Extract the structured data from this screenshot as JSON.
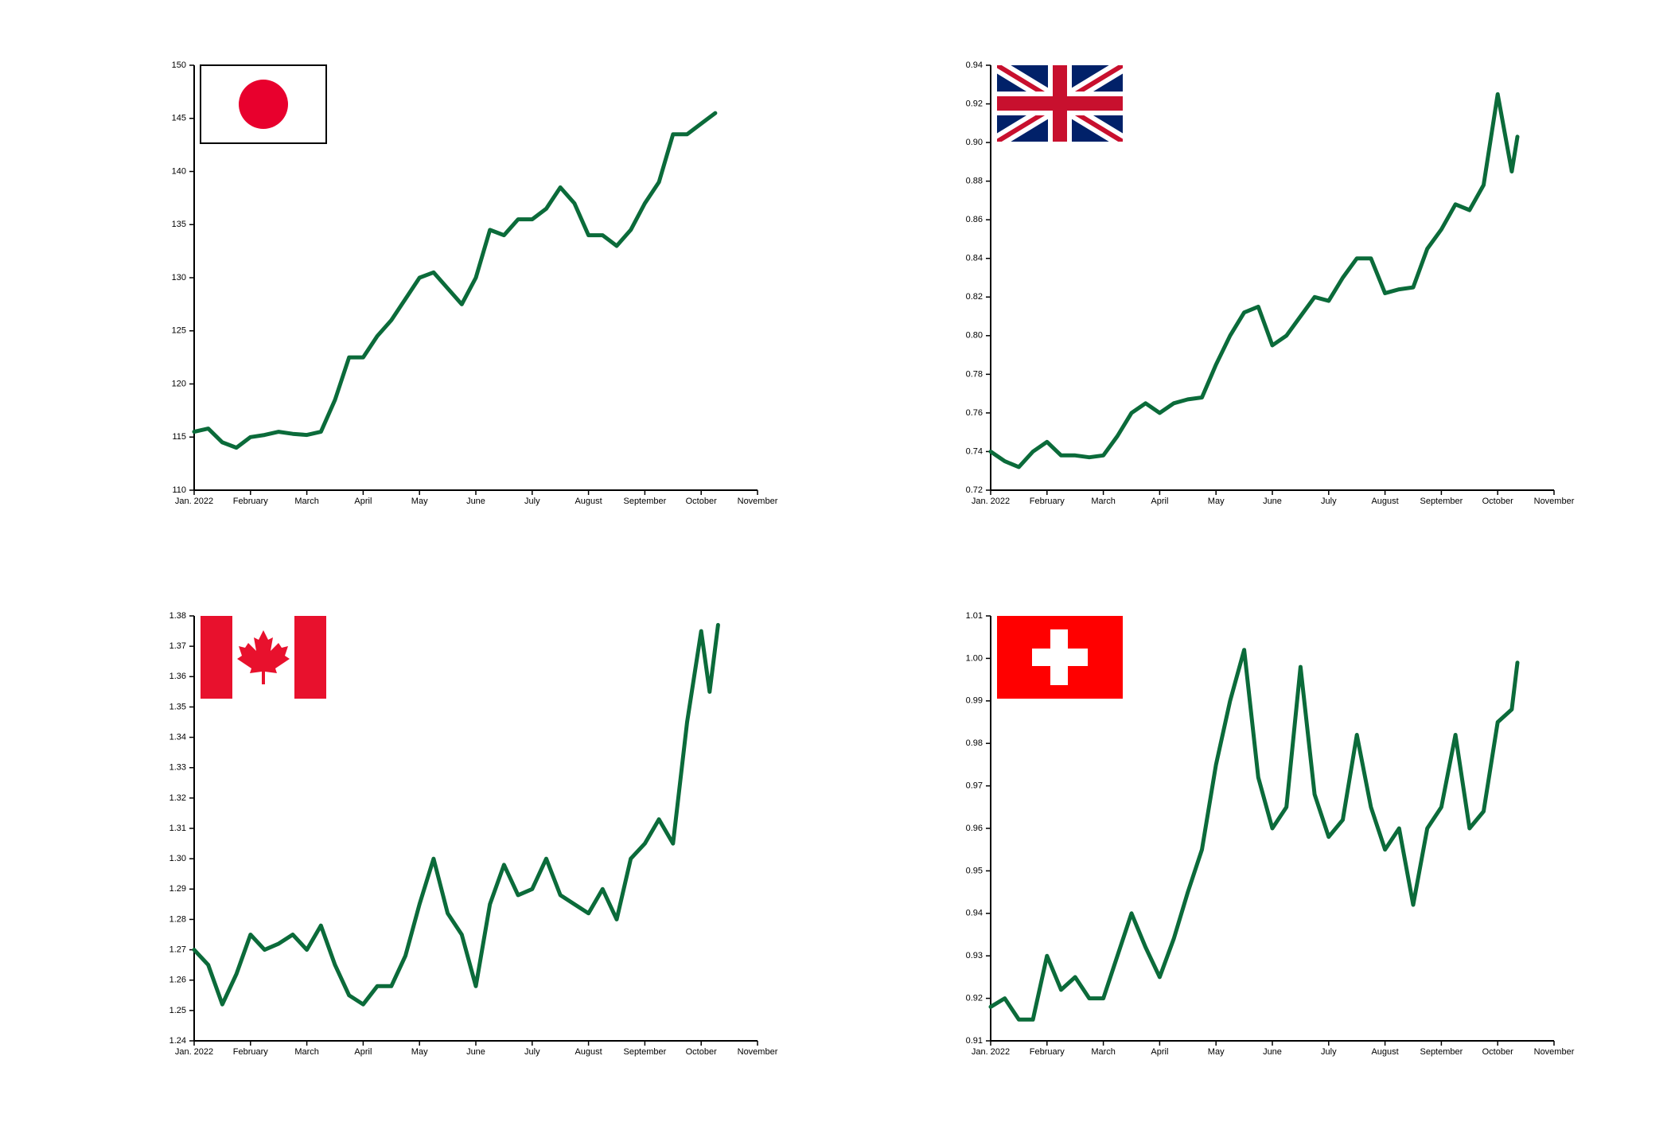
{
  "chart_data": [
    {
      "type": "line",
      "color": "#0b6b3a",
      "x": [
        0,
        0.25,
        0.5,
        0.75,
        1,
        1.25,
        1.5,
        1.75,
        2,
        2.25,
        2.5,
        2.75,
        3,
        3.25,
        3.5,
        3.75,
        4,
        4.25,
        4.5,
        4.75,
        5,
        5.25,
        5.5,
        5.75,
        6,
        6.25,
        6.5,
        6.75,
        7,
        7.25,
        7.5,
        7.75,
        8,
        8.25,
        8.5,
        8.75,
        9,
        9.25
      ],
      "values": [
        115.5,
        115.8,
        114.5,
        114,
        115,
        115.2,
        115.5,
        115.3,
        115.2,
        115.5,
        118.5,
        122.5,
        122.5,
        124.5,
        126,
        128,
        130,
        130.5,
        129,
        127.5,
        130,
        134.5,
        134,
        135.5,
        135.5,
        136.5,
        138.5,
        137,
        134,
        134,
        133,
        134.5,
        137,
        139,
        143.5,
        143.5,
        144.5,
        145.5
      ],
      "xlim": [
        0,
        10
      ],
      "xticks": [
        {
          "value": 0,
          "label": "Jan. 2022"
        },
        {
          "value": 1,
          "label": "February"
        },
        {
          "value": 2,
          "label": "March"
        },
        {
          "value": 3,
          "label": "April"
        },
        {
          "value": 4,
          "label": "May"
        },
        {
          "value": 5,
          "label": "June"
        },
        {
          "value": 6,
          "label": "July"
        },
        {
          "value": 7,
          "label": "August"
        },
        {
          "value": 8,
          "label": "September"
        },
        {
          "value": 9,
          "label": "October"
        },
        {
          "value": 10,
          "label": "November"
        }
      ],
      "ylim": [
        110,
        150
      ],
      "yticks": [
        110,
        115,
        120,
        125,
        130,
        135,
        140,
        145,
        150
      ]
    },
    {
      "type": "line",
      "color": "#0b6b3a",
      "x": [
        0,
        0.25,
        0.5,
        0.75,
        1,
        1.25,
        1.5,
        1.75,
        2,
        2.25,
        2.5,
        2.75,
        3,
        3.25,
        3.5,
        3.75,
        4,
        4.25,
        4.5,
        4.75,
        5,
        5.25,
        5.5,
        5.75,
        6,
        6.25,
        6.5,
        6.75,
        7,
        7.25,
        7.5,
        7.75,
        8,
        8.25,
        8.5,
        8.75,
        9,
        9.25,
        9.35
      ],
      "values": [
        0.74,
        0.735,
        0.732,
        0.74,
        0.745,
        0.738,
        0.738,
        0.737,
        0.738,
        0.748,
        0.76,
        0.765,
        0.76,
        0.765,
        0.767,
        0.768,
        0.785,
        0.8,
        0.812,
        0.815,
        0.795,
        0.8,
        0.81,
        0.82,
        0.818,
        0.83,
        0.84,
        0.84,
        0.822,
        0.824,
        0.825,
        0.845,
        0.855,
        0.868,
        0.865,
        0.878,
        0.925,
        0.885,
        0.903
      ],
      "xlim": [
        0,
        10
      ],
      "xticks": [
        {
          "value": 0,
          "label": "Jan. 2022"
        },
        {
          "value": 1,
          "label": "February"
        },
        {
          "value": 2,
          "label": "March"
        },
        {
          "value": 3,
          "label": "April"
        },
        {
          "value": 4,
          "label": "May"
        },
        {
          "value": 5,
          "label": "June"
        },
        {
          "value": 6,
          "label": "July"
        },
        {
          "value": 7,
          "label": "August"
        },
        {
          "value": 8,
          "label": "September"
        },
        {
          "value": 9,
          "label": "October"
        },
        {
          "value": 10,
          "label": "November"
        }
      ],
      "ylim": [
        0.72,
        0.94
      ],
      "yticks": [
        0.72,
        0.74,
        0.76,
        0.78,
        {
          "value": 0.8,
          "label": "0.80"
        },
        0.82,
        0.84,
        0.86,
        0.88,
        {
          "value": 0.9,
          "label": "0.90"
        },
        0.92,
        0.94
      ]
    },
    {
      "type": "line",
      "color": "#0b6b3a",
      "x": [
        0,
        0.25,
        0.5,
        0.75,
        1,
        1.25,
        1.5,
        1.75,
        2,
        2.25,
        2.5,
        2.75,
        3,
        3.25,
        3.5,
        3.75,
        4,
        4.25,
        4.5,
        4.75,
        5,
        5.25,
        5.5,
        5.75,
        6,
        6.25,
        6.5,
        6.75,
        7,
        7.25,
        7.5,
        7.75,
        8,
        8.25,
        8.5,
        8.75,
        9,
        9.15,
        9.3
      ],
      "values": [
        1.27,
        1.265,
        1.252,
        1.262,
        1.275,
        1.27,
        1.272,
        1.275,
        1.27,
        1.278,
        1.265,
        1.255,
        1.252,
        1.258,
        1.258,
        1.268,
        1.285,
        1.3,
        1.282,
        1.275,
        1.258,
        1.285,
        1.298,
        1.288,
        1.29,
        1.3,
        1.288,
        1.285,
        1.282,
        1.29,
        1.28,
        1.3,
        1.305,
        1.313,
        1.305,
        1.345,
        1.375,
        1.355,
        1.377
      ],
      "xlim": [
        0,
        10
      ],
      "xticks": [
        {
          "value": 0,
          "label": "Jan. 2022"
        },
        {
          "value": 1,
          "label": "February"
        },
        {
          "value": 2,
          "label": "March"
        },
        {
          "value": 3,
          "label": "April"
        },
        {
          "value": 4,
          "label": "May"
        },
        {
          "value": 5,
          "label": "June"
        },
        {
          "value": 6,
          "label": "July"
        },
        {
          "value": 7,
          "label": "August"
        },
        {
          "value": 8,
          "label": "September"
        },
        {
          "value": 9,
          "label": "October"
        },
        {
          "value": 10,
          "label": "November"
        }
      ],
      "ylim": [
        1.24,
        1.38
      ],
      "yticks": [
        1.24,
        1.25,
        1.26,
        1.27,
        1.28,
        1.29,
        {
          "value": 1.3,
          "label": "1.30"
        },
        1.31,
        1.32,
        1.33,
        1.34,
        1.35,
        1.36,
        1.37,
        1.38
      ]
    },
    {
      "type": "line",
      "color": "#0b6b3a",
      "x": [
        0,
        0.25,
        0.5,
        0.75,
        1,
        1.25,
        1.5,
        1.75,
        2,
        2.25,
        2.5,
        2.75,
        3,
        3.25,
        3.5,
        3.75,
        4,
        4.25,
        4.5,
        4.75,
        5,
        5.25,
        5.5,
        5.75,
        6,
        6.25,
        6.5,
        6.75,
        7,
        7.25,
        7.5,
        7.75,
        8,
        8.25,
        8.5,
        8.75,
        9,
        9.25,
        9.35
      ],
      "values": [
        0.918,
        0.92,
        0.915,
        0.915,
        0.93,
        0.922,
        0.925,
        0.92,
        0.92,
        0.93,
        0.94,
        0.932,
        0.925,
        0.934,
        0.945,
        0.955,
        0.975,
        0.99,
        1.002,
        0.972,
        0.96,
        0.965,
        0.998,
        0.968,
        0.958,
        0.962,
        0.982,
        0.965,
        0.955,
        0.96,
        0.942,
        0.96,
        0.965,
        0.982,
        0.96,
        0.964,
        0.985,
        0.988,
        0.999
      ],
      "xlim": [
        0,
        10
      ],
      "xticks": [
        {
          "value": 0,
          "label": "Jan. 2022"
        },
        {
          "value": 1,
          "label": "February"
        },
        {
          "value": 2,
          "label": "March"
        },
        {
          "value": 3,
          "label": "April"
        },
        {
          "value": 4,
          "label": "May"
        },
        {
          "value": 5,
          "label": "June"
        },
        {
          "value": 6,
          "label": "July"
        },
        {
          "value": 7,
          "label": "August"
        },
        {
          "value": 8,
          "label": "September"
        },
        {
          "value": 9,
          "label": "October"
        },
        {
          "value": 10,
          "label": "November"
        }
      ],
      "ylim": [
        0.91,
        1.01
      ],
      "yticks": [
        0.91,
        0.92,
        0.93,
        0.94,
        0.95,
        0.96,
        0.97,
        0.98,
        0.99,
        {
          "value": 1,
          "label": "1.00"
        },
        1.01
      ]
    }
  ]
}
